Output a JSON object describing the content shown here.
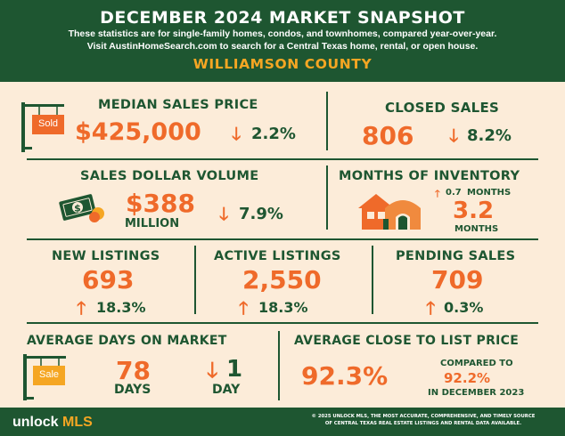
{
  "header": {
    "title": "DECEMBER 2024 MARKET SNAPSHOT",
    "subtitle_line1": "These statistics are for single-family homes, condos, and townhomes, compared year-over-year.",
    "subtitle_line2": "Visit AustinHomeSearch.com to search for a Central Texas home, rental, or open house.",
    "county": "WILLIAMSON COUNTY"
  },
  "median_sales_price": {
    "label": "MEDIAN SALES PRICE",
    "value": "$425,000",
    "change": "2.2%",
    "direction": "down",
    "sign_text": "Sold"
  },
  "closed_sales": {
    "label": "CLOSED SALES",
    "value": "806",
    "change": "8.2%",
    "direction": "down"
  },
  "sales_dollar_volume": {
    "label": "SALES DOLLAR VOLUME",
    "value": "$388",
    "unit": "MILLION",
    "change": "7.9%",
    "direction": "down",
    "icon": "money-icon"
  },
  "months_of_inventory": {
    "label": "MONTHS OF INVENTORY",
    "change": "0.7",
    "change_unit": "MONTHS",
    "direction": "up",
    "value": "3.2",
    "unit": "MONTHS",
    "icon": "house-icon"
  },
  "new_listings": {
    "label": "NEW LISTINGS",
    "value": "693",
    "change": "18.3%",
    "direction": "up"
  },
  "active_listings": {
    "label": "ACTIVE LISTINGS",
    "value": "2,550",
    "change": "18.3%",
    "direction": "up"
  },
  "pending_sales": {
    "label": "PENDING SALES",
    "value": "709",
    "change": "0.3%",
    "direction": "up"
  },
  "average_days_on_market": {
    "label": "AVERAGE DAYS ON MARKET",
    "value": "78",
    "unit": "DAYS",
    "change": "1",
    "change_unit": "DAY",
    "direction": "down",
    "sign_text": "Sale"
  },
  "average_close_to_list": {
    "label": "AVERAGE CLOSE TO LIST PRICE",
    "value": "92.3%",
    "compared_label": "COMPARED TO",
    "compared_value": "92.2%",
    "compared_period": "IN DECEMBER 2023"
  },
  "footer": {
    "logo_main": "unlock",
    "logo_accent": "MLS",
    "copyright_line1": "© 2025 UNLOCK MLS, THE MOST ACCURATE, COMPREHENSIVE, AND TIMELY SOURCE",
    "copyright_line2": "OF CENTRAL TEXAS REAL ESTATE LISTINGS AND RENTAL DATA AVAILABLE."
  },
  "colors": {
    "green": "#1e5631",
    "orange": "#ef6a2a",
    "gold": "#f5a623",
    "background": "#fcecd9"
  }
}
